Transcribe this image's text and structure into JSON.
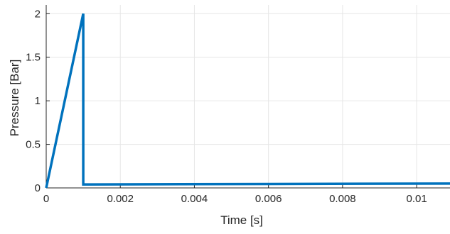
{
  "chart_data": {
    "type": "line",
    "title": "",
    "xlabel": "Time [s]",
    "ylabel": "Pressure [Bar]",
    "xlim": [
      0,
      0.0109
    ],
    "ylim": [
      0,
      2.1
    ],
    "x_ticks": [
      0,
      0.002,
      0.004,
      0.006,
      0.008,
      0.01
    ],
    "x_tick_labels": [
      "0",
      "0.002",
      "0.004",
      "0.006",
      "0.008",
      "0.01"
    ],
    "y_ticks": [
      0,
      0.5,
      1,
      1.5,
      2
    ],
    "y_tick_labels": [
      "0",
      "0.5",
      "1",
      "1.5",
      "2"
    ],
    "grid": true,
    "legend": false,
    "series": [
      {
        "color": "#0072BD",
        "x": [
          0,
          0.001,
          0.001,
          0.0109
        ],
        "y": [
          0,
          2,
          0.04,
          0.05
        ]
      }
    ]
  }
}
